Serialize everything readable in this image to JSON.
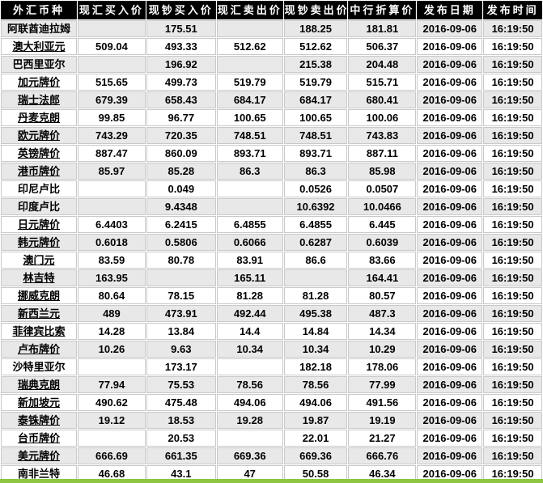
{
  "colors": {
    "header_bg": "#000000",
    "header_text": "#ffffff",
    "row_stripe": "#e8e8e8",
    "accent_green": "#8dc63f"
  },
  "table": {
    "headers": [
      "外汇币种",
      "现汇买入价",
      "现钞买入价",
      "现汇卖出价",
      "现钞卖出价",
      "中行折算价",
      "发布日期",
      "发布时间"
    ],
    "rows": [
      {
        "name": "阿联酋迪拉姆",
        "link": false,
        "values": [
          "",
          "175.51",
          "",
          "188.25",
          "181.81",
          "2016-09-06",
          "16:19:50"
        ]
      },
      {
        "name": "澳大利亚元",
        "link": true,
        "values": [
          "509.04",
          "493.33",
          "512.62",
          "512.62",
          "506.37",
          "2016-09-06",
          "16:19:50"
        ]
      },
      {
        "name": "巴西里亚尔",
        "link": false,
        "values": [
          "",
          "196.92",
          "",
          "215.38",
          "204.48",
          "2016-09-06",
          "16:19:50"
        ]
      },
      {
        "name": "加元牌价",
        "link": true,
        "values": [
          "515.65",
          "499.73",
          "519.79",
          "519.79",
          "515.71",
          "2016-09-06",
          "16:19:50"
        ]
      },
      {
        "name": "瑞士法郎",
        "link": true,
        "values": [
          "679.39",
          "658.43",
          "684.17",
          "684.17",
          "680.41",
          "2016-09-06",
          "16:19:50"
        ]
      },
      {
        "name": "丹麦克朗",
        "link": true,
        "values": [
          "99.85",
          "96.77",
          "100.65",
          "100.65",
          "100.06",
          "2016-09-06",
          "16:19:50"
        ]
      },
      {
        "name": "欧元牌价",
        "link": true,
        "values": [
          "743.29",
          "720.35",
          "748.51",
          "748.51",
          "743.83",
          "2016-09-06",
          "16:19:50"
        ]
      },
      {
        "name": "英镑牌价",
        "link": true,
        "values": [
          "887.47",
          "860.09",
          "893.71",
          "893.71",
          "887.11",
          "2016-09-06",
          "16:19:50"
        ]
      },
      {
        "name": "港币牌价",
        "link": true,
        "values": [
          "85.97",
          "85.28",
          "86.3",
          "86.3",
          "85.98",
          "2016-09-06",
          "16:19:50"
        ]
      },
      {
        "name": "印尼卢比",
        "link": false,
        "values": [
          "",
          "0.049",
          "",
          "0.0526",
          "0.0507",
          "2016-09-06",
          "16:19:50"
        ]
      },
      {
        "name": "印度卢比",
        "link": false,
        "values": [
          "",
          "9.4348",
          "",
          "10.6392",
          "10.0466",
          "2016-09-06",
          "16:19:50"
        ]
      },
      {
        "name": "日元牌价",
        "link": true,
        "values": [
          "6.4403",
          "6.2415",
          "6.4855",
          "6.4855",
          "6.445",
          "2016-09-06",
          "16:19:50"
        ]
      },
      {
        "name": "韩元牌价",
        "link": true,
        "values": [
          "0.6018",
          "0.5806",
          "0.6066",
          "0.6287",
          "0.6039",
          "2016-09-06",
          "16:19:50"
        ]
      },
      {
        "name": "澳门元",
        "link": true,
        "values": [
          "83.59",
          "80.78",
          "83.91",
          "86.6",
          "83.66",
          "2016-09-06",
          "16:19:50"
        ]
      },
      {
        "name": "林吉特",
        "link": true,
        "values": [
          "163.95",
          "",
          "165.11",
          "",
          "164.41",
          "2016-09-06",
          "16:19:50"
        ]
      },
      {
        "name": "挪威克朗",
        "link": true,
        "values": [
          "80.64",
          "78.15",
          "81.28",
          "81.28",
          "80.57",
          "2016-09-06",
          "16:19:50"
        ]
      },
      {
        "name": "新西兰元",
        "link": true,
        "values": [
          "489",
          "473.91",
          "492.44",
          "495.38",
          "487.3",
          "2016-09-06",
          "16:19:50"
        ]
      },
      {
        "name": "菲律宾比索",
        "link": true,
        "values": [
          "14.28",
          "13.84",
          "14.4",
          "14.84",
          "14.34",
          "2016-09-06",
          "16:19:50"
        ]
      },
      {
        "name": "卢布牌价",
        "link": true,
        "values": [
          "10.26",
          "9.63",
          "10.34",
          "10.34",
          "10.29",
          "2016-09-06",
          "16:19:50"
        ]
      },
      {
        "name": "沙特里亚尔",
        "link": false,
        "values": [
          "",
          "173.17",
          "",
          "182.18",
          "178.06",
          "2016-09-06",
          "16:19:50"
        ]
      },
      {
        "name": "瑞典克朗",
        "link": true,
        "values": [
          "77.94",
          "75.53",
          "78.56",
          "78.56",
          "77.99",
          "2016-09-06",
          "16:19:50"
        ]
      },
      {
        "name": "新加坡元",
        "link": true,
        "values": [
          "490.62",
          "475.48",
          "494.06",
          "494.06",
          "491.56",
          "2016-09-06",
          "16:19:50"
        ]
      },
      {
        "name": "泰铢牌价",
        "link": true,
        "values": [
          "19.12",
          "18.53",
          "19.28",
          "19.87",
          "19.19",
          "2016-09-06",
          "16:19:50"
        ]
      },
      {
        "name": "台币牌价",
        "link": true,
        "values": [
          "",
          "20.53",
          "",
          "22.01",
          "21.27",
          "2016-09-06",
          "16:19:50"
        ]
      },
      {
        "name": "美元牌价",
        "link": true,
        "values": [
          "666.69",
          "661.35",
          "669.36",
          "669.36",
          "666.76",
          "2016-09-06",
          "16:19:50"
        ]
      },
      {
        "name": "南非兰特",
        "link": false,
        "values": [
          "46.68",
          "43.1",
          "47",
          "50.58",
          "46.34",
          "2016-09-06",
          "16:19:50"
        ]
      }
    ]
  }
}
